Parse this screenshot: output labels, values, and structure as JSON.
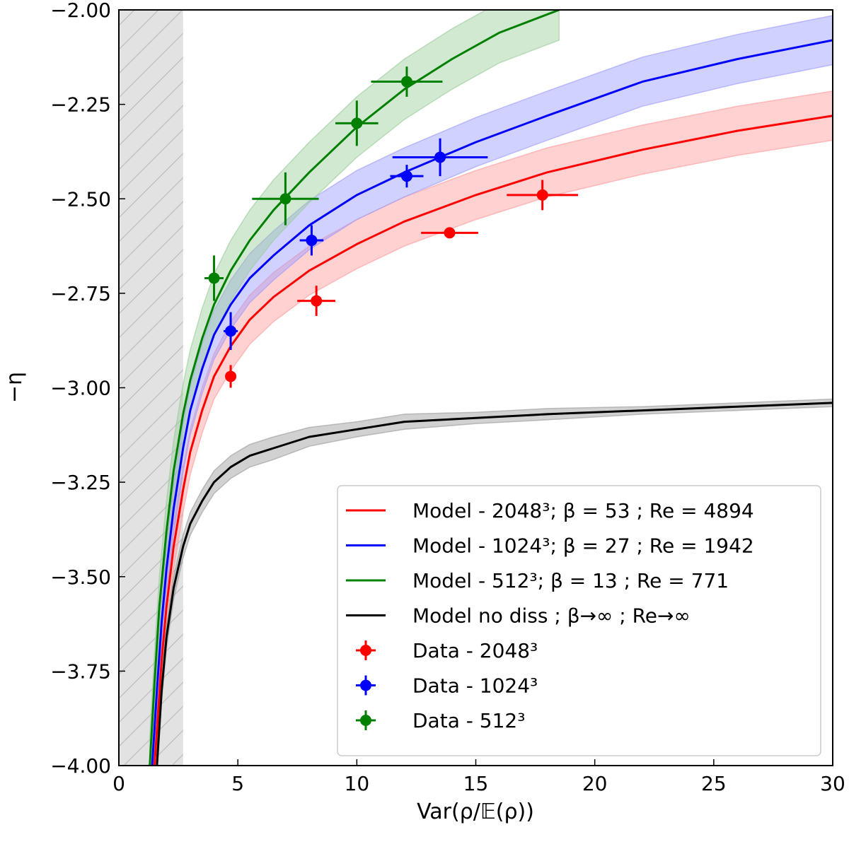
{
  "chart_data": {
    "type": "line",
    "title": "",
    "xlabel": "Var(ρ/𝔼(ρ))",
    "ylabel": "−η",
    "xlim": [
      0,
      30
    ],
    "ylim": [
      -4.0,
      -2.0
    ],
    "xticks": [
      0,
      5,
      10,
      15,
      20,
      25,
      30
    ],
    "yticks": [
      -4.0,
      -3.75,
      -3.5,
      -3.25,
      -3.0,
      -2.75,
      -2.5,
      -2.25,
      -2.0
    ],
    "xtick_labels": [
      "0",
      "5",
      "10",
      "15",
      "20",
      "25",
      "30"
    ],
    "ytick_labels": [
      "−4.00",
      "−3.75",
      "−3.50",
      "−3.25",
      "−3.00",
      "−2.75",
      "−2.50",
      "−2.25",
      "−2.00"
    ],
    "grid": false,
    "legend_position": "bottom-right",
    "excluded_region": {
      "x": [
        0,
        2.7
      ],
      "style": "gray hatched"
    },
    "model_series": [
      {
        "name": "Model - 2048³; β = 53 ; Re = 4894",
        "color": "#ff0000",
        "band_color": "#ff9999",
        "x": [
          1.5,
          1.8,
          2.0,
          2.3,
          2.7,
          3.0,
          3.5,
          4.0,
          4.7,
          5.5,
          6.5,
          8.0,
          10.0,
          12.0,
          15.0,
          18.0,
          22.0,
          26.0,
          30.0
        ],
        "y": [
          -4.0,
          -3.72,
          -3.58,
          -3.42,
          -3.27,
          -3.17,
          -3.06,
          -2.97,
          -2.89,
          -2.82,
          -2.76,
          -2.69,
          -2.62,
          -2.56,
          -2.49,
          -2.43,
          -2.37,
          -2.32,
          -2.28
        ],
        "band_half_width": [
          0.06,
          0.06,
          0.06,
          0.06,
          0.06,
          0.06,
          0.06,
          0.06,
          0.065,
          0.065,
          0.065,
          0.065,
          0.065,
          0.065,
          0.065,
          0.065,
          0.065,
          0.065,
          0.065
        ]
      },
      {
        "name": "Model - 1024³; β = 27 ; Re = 1942",
        "color": "#0000ff",
        "band_color": "#9999ff",
        "x": [
          1.4,
          1.6,
          1.8,
          2.0,
          2.3,
          2.7,
          3.0,
          3.5,
          4.0,
          4.7,
          5.5,
          6.5,
          8.0,
          10.0,
          12.0,
          15.0,
          18.0,
          22.0,
          26.0,
          30.0
        ],
        "y": [
          -4.0,
          -3.8,
          -3.62,
          -3.48,
          -3.32,
          -3.16,
          -3.06,
          -2.95,
          -2.86,
          -2.78,
          -2.71,
          -2.65,
          -2.57,
          -2.49,
          -2.43,
          -2.35,
          -2.28,
          -2.19,
          -2.13,
          -2.08
        ],
        "band_half_width": [
          0.06,
          0.06,
          0.06,
          0.06,
          0.065,
          0.065,
          0.065,
          0.065,
          0.065,
          0.065,
          0.065,
          0.065,
          0.065,
          0.065,
          0.065,
          0.065,
          0.065,
          0.065,
          0.065,
          0.065
        ]
      },
      {
        "name": "Model - 512³; β = 13 ; Re = 771",
        "color": "#008000",
        "band_color": "#99cc99",
        "x": [
          1.3,
          1.5,
          1.7,
          2.0,
          2.3,
          2.7,
          3.0,
          3.5,
          4.0,
          4.7,
          5.5,
          6.5,
          8.0,
          10.0,
          12.0,
          14.0,
          16.0,
          18.5
        ],
        "y": [
          -4.0,
          -3.78,
          -3.58,
          -3.38,
          -3.22,
          -3.07,
          -2.98,
          -2.87,
          -2.78,
          -2.69,
          -2.61,
          -2.53,
          -2.43,
          -2.31,
          -2.21,
          -2.13,
          -2.06,
          -2.0
        ],
        "band_half_width": [
          0.08,
          0.08,
          0.08,
          0.08,
          0.08,
          0.08,
          0.08,
          0.08,
          0.08,
          0.08,
          0.08,
          0.08,
          0.08,
          0.08,
          0.08,
          0.08,
          0.08,
          0.08
        ]
      },
      {
        "name": "Model no diss ; β→∞ ; Re→∞",
        "color": "#000000",
        "band_color": "#999999",
        "x": [
          1.6,
          1.8,
          2.0,
          2.3,
          2.7,
          3.0,
          3.5,
          4.0,
          4.7,
          5.5,
          6.5,
          8.0,
          10.0,
          12.0,
          15.0,
          18.0,
          22.0,
          26.0,
          30.0
        ],
        "y": [
          -4.0,
          -3.8,
          -3.66,
          -3.53,
          -3.42,
          -3.36,
          -3.3,
          -3.25,
          -3.21,
          -3.18,
          -3.16,
          -3.13,
          -3.11,
          -3.09,
          -3.08,
          -3.07,
          -3.06,
          -3.05,
          -3.04
        ],
        "band_half_width": [
          0.03,
          0.03,
          0.03,
          0.03,
          0.03,
          0.03,
          0.03,
          0.03,
          0.03,
          0.03,
          0.03,
          0.025,
          0.02,
          0.02,
          0.015,
          0.015,
          0.01,
          0.01,
          0.01
        ]
      }
    ],
    "data_series": [
      {
        "name": "Data - 2048³",
        "color": "#ff0000",
        "points": [
          {
            "x": 4.7,
            "y": -2.97,
            "xerr": 0.15,
            "yerr": 0.03
          },
          {
            "x": 8.3,
            "y": -2.77,
            "xerr": 0.8,
            "yerr": 0.04
          },
          {
            "x": 13.9,
            "y": -2.59,
            "xerr": 1.2,
            "yerr": 0.0
          },
          {
            "x": 17.8,
            "y": -2.49,
            "xerr": 1.5,
            "yerr": 0.04
          }
        ]
      },
      {
        "name": "Data - 1024³",
        "color": "#0000ff",
        "points": [
          {
            "x": 4.7,
            "y": -2.85,
            "xerr": 0.3,
            "yerr": 0.05
          },
          {
            "x": 8.1,
            "y": -2.61,
            "xerr": 0.5,
            "yerr": 0.04
          },
          {
            "x": 12.1,
            "y": -2.44,
            "xerr": 0.7,
            "yerr": 0.03
          },
          {
            "x": 13.5,
            "y": -2.39,
            "xerr": 2.0,
            "yerr": 0.05
          }
        ]
      },
      {
        "name": "Data - 512³",
        "color": "#008000",
        "points": [
          {
            "x": 4.0,
            "y": -2.71,
            "xerr": 0.4,
            "yerr": 0.06
          },
          {
            "x": 7.0,
            "y": -2.5,
            "xerr": 1.4,
            "yerr": 0.07
          },
          {
            "x": 10.0,
            "y": -2.3,
            "xerr": 0.9,
            "yerr": 0.06
          },
          {
            "x": 12.1,
            "y": -2.19,
            "xerr": 1.5,
            "yerr": 0.04
          }
        ]
      }
    ],
    "legend": [
      {
        "label": "Model - 2048³; β = 53 ; Re = 4894",
        "color": "#ff0000",
        "kind": "line"
      },
      {
        "label": "Model - 1024³; β = 27 ; Re = 1942",
        "color": "#0000ff",
        "kind": "line"
      },
      {
        "label": "Model - 512³; β = 13 ; Re = 771",
        "color": "#008000",
        "kind": "line"
      },
      {
        "label": "Model no diss ; β→∞ ; Re→∞",
        "color": "#000000",
        "kind": "line"
      },
      {
        "label": "Data - 2048³",
        "color": "#ff0000",
        "kind": "errorbar"
      },
      {
        "label": "Data - 1024³",
        "color": "#0000ff",
        "kind": "errorbar"
      },
      {
        "label": "Data - 512³",
        "color": "#008000",
        "kind": "errorbar"
      }
    ]
  }
}
